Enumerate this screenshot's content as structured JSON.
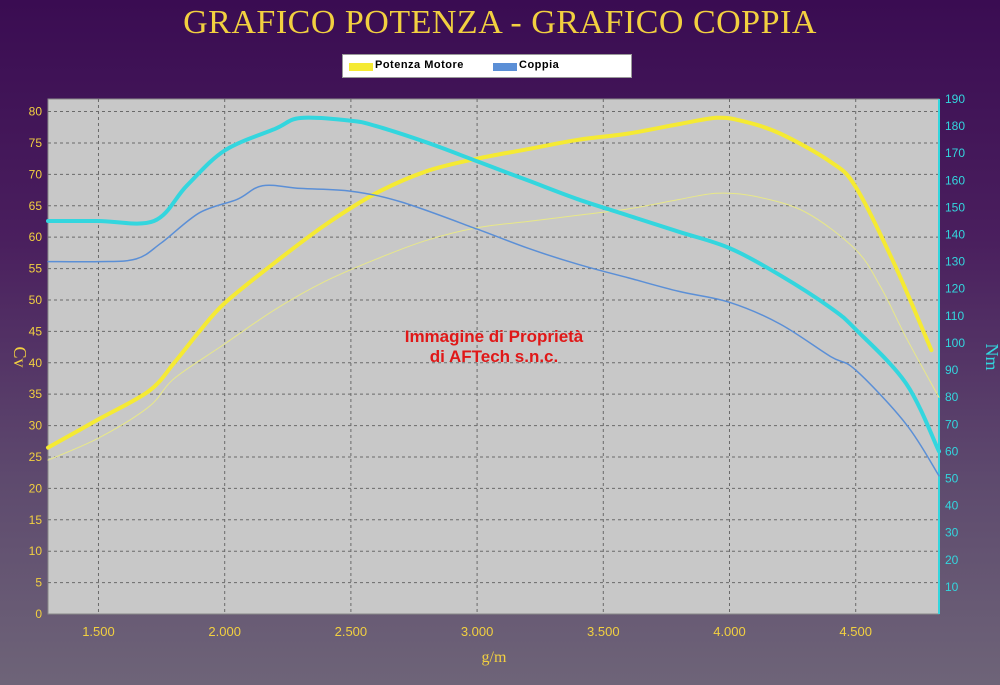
{
  "page": {
    "title": "GRAFICO POTENZA - GRAFICO COPPIA"
  },
  "legend": {
    "items": [
      {
        "label": "Potenza Motore",
        "color": "#f5ea33"
      },
      {
        "label": "Coppia",
        "color": "#5b8fd6"
      }
    ]
  },
  "watermark": {
    "line1": "Immagine di Proprietà",
    "line2": "di AFTech s.n.c."
  },
  "chart_data": {
    "type": "line",
    "title": "GRAFICO POTENZA - GRAFICO COPPIA",
    "xlabel": "g/m",
    "ylabel_left": "Cv",
    "ylabel_right": "Nm",
    "xlim": [
      1300,
      4830
    ],
    "ylim_left": [
      0,
      82
    ],
    "ylim_right": [
      0,
      190
    ],
    "x_ticks": [
      1500,
      2000,
      2500,
      3000,
      3500,
      4000,
      4500
    ],
    "x_tick_labels": [
      "1.500",
      "2.000",
      "2.500",
      "3.000",
      "3.500",
      "4.000",
      "4.500"
    ],
    "y_left_ticks": [
      0,
      5,
      10,
      15,
      20,
      25,
      30,
      35,
      40,
      45,
      50,
      55,
      60,
      65,
      70,
      75,
      80
    ],
    "y_right_ticks": [
      10,
      20,
      30,
      40,
      50,
      60,
      70,
      80,
      90,
      100,
      110,
      120,
      130,
      140,
      150,
      160,
      170,
      180,
      190
    ],
    "grid": true,
    "legend_position": "top-center",
    "series": [
      {
        "name": "Potenza Motore",
        "axis": "left",
        "color": "#f5ea33",
        "width": 4,
        "points": [
          [
            1300,
            26.5
          ],
          [
            1500,
            31
          ],
          [
            1700,
            35.5
          ],
          [
            1800,
            40
          ],
          [
            1900,
            45
          ],
          [
            2000,
            49.5
          ],
          [
            2200,
            56
          ],
          [
            2400,
            62
          ],
          [
            2600,
            67
          ],
          [
            2800,
            70.5
          ],
          [
            3000,
            72.5
          ],
          [
            3200,
            74
          ],
          [
            3400,
            75.5
          ],
          [
            3600,
            76.5
          ],
          [
            3800,
            78
          ],
          [
            3950,
            79
          ],
          [
            4050,
            78.5
          ],
          [
            4200,
            76.5
          ],
          [
            4400,
            72
          ],
          [
            4500,
            68
          ],
          [
            4650,
            56
          ],
          [
            4800,
            42
          ]
        ]
      },
      {
        "axis": "left",
        "color": "#e8e888",
        "width": 1,
        "points": [
          [
            1300,
            24.5
          ],
          [
            1500,
            28
          ],
          [
            1700,
            33
          ],
          [
            1800,
            37.5
          ],
          [
            2000,
            43
          ],
          [
            2200,
            48.5
          ],
          [
            2400,
            53
          ],
          [
            2600,
            56.5
          ],
          [
            2800,
            59.5
          ],
          [
            3000,
            61.5
          ],
          [
            3200,
            62.5
          ],
          [
            3400,
            63.5
          ],
          [
            3600,
            64.5
          ],
          [
            3800,
            66
          ],
          [
            3950,
            67
          ],
          [
            4100,
            66.5
          ],
          [
            4300,
            64
          ],
          [
            4500,
            58
          ],
          [
            4600,
            52
          ],
          [
            4700,
            44
          ],
          [
            4830,
            34.5
          ]
        ]
      },
      {
        "axis": "right",
        "color": "#33d6de",
        "width": 4,
        "points": [
          [
            1300,
            145
          ],
          [
            1500,
            145
          ],
          [
            1720,
            145
          ],
          [
            1850,
            158
          ],
          [
            2000,
            171
          ],
          [
            2200,
            179
          ],
          [
            2300,
            183
          ],
          [
            2500,
            182
          ],
          [
            2600,
            180
          ],
          [
            2800,
            174
          ],
          [
            3000,
            167
          ],
          [
            3200,
            160
          ],
          [
            3400,
            153
          ],
          [
            3600,
            147
          ],
          [
            3800,
            141
          ],
          [
            4000,
            135
          ],
          [
            4200,
            125
          ],
          [
            4400,
            113
          ],
          [
            4500,
            105
          ],
          [
            4700,
            85
          ],
          [
            4830,
            60
          ]
        ]
      },
      {
        "axis": "right",
        "color": "#5b8fd6",
        "width": 1.5,
        "points": [
          [
            1300,
            130
          ],
          [
            1500,
            130
          ],
          [
            1650,
            131
          ],
          [
            1750,
            137
          ],
          [
            1900,
            148
          ],
          [
            2050,
            153
          ],
          [
            2150,
            158
          ],
          [
            2300,
            157
          ],
          [
            2500,
            156
          ],
          [
            2700,
            152
          ],
          [
            3000,
            142
          ],
          [
            3200,
            135
          ],
          [
            3400,
            129
          ],
          [
            3600,
            124
          ],
          [
            3800,
            119
          ],
          [
            4000,
            115
          ],
          [
            4200,
            107
          ],
          [
            4400,
            95
          ],
          [
            4500,
            90
          ],
          [
            4700,
            70
          ],
          [
            4830,
            51
          ]
        ]
      }
    ]
  }
}
